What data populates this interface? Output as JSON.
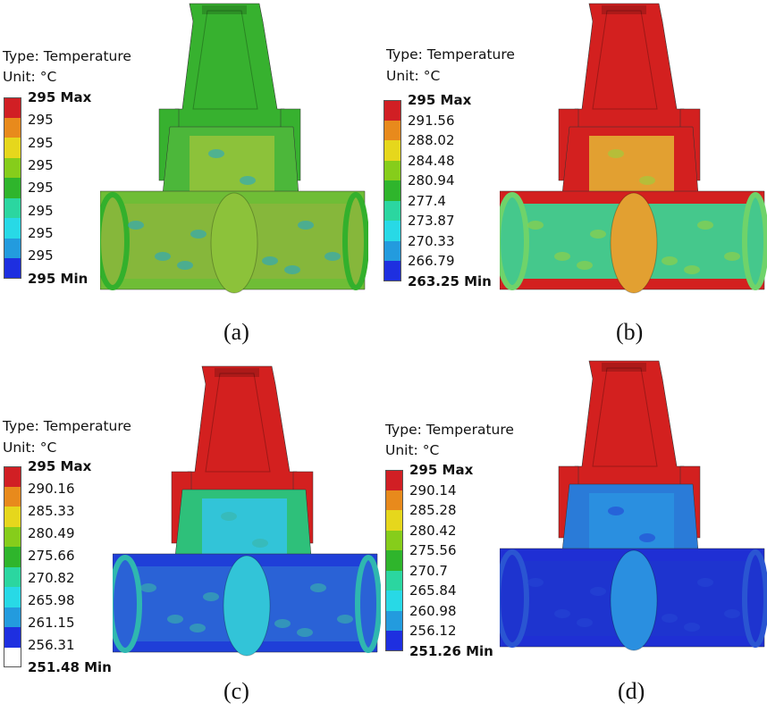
{
  "palette": [
    "#d11f24",
    "#e88a1c",
    "#e6d71c",
    "#86cd1b",
    "#2fb52c",
    "#2bd6a0",
    "#28d9e6",
    "#239bde",
    "#1e2fe0",
    "#ffffff"
  ],
  "panels": [
    {
      "id": "a",
      "type_label": "Type: Temperature",
      "unit_label": "Unit: °C",
      "legend": [
        "295 Max",
        "295",
        "295",
        "295",
        "295",
        "295",
        "295",
        "295",
        "295 Min"
      ],
      "swatches": [
        "#d11f24",
        "#e88a1c",
        "#e6d71c",
        "#86cd1b",
        "#2fb52c",
        "#2bd6a0",
        "#28d9e6",
        "#239bde",
        "#1e2fe0"
      ],
      "caption": "(a)",
      "scheme": {
        "neck": "#37b12f",
        "body": "#4cb73a",
        "inner": "#8cc23a",
        "pipe": "#6fbd36",
        "bore": "#86b73b",
        "rim": "#33b02c",
        "speck": "#27a6c8"
      }
    },
    {
      "id": "b",
      "type_label": "Type: Temperature",
      "unit_label": "Unit: °C",
      "legend": [
        "295  Max",
        "291.56",
        "288.02",
        "284.48",
        "280.94",
        "277.4",
        "273.87",
        "270.33",
        "266.79",
        "263.25 Min"
      ],
      "swatches": [
        "#d11f24",
        "#e88a1c",
        "#e6d71c",
        "#86cd1b",
        "#2fb52c",
        "#2bd6a0",
        "#28d9e6",
        "#239bde",
        "#1e2fe0"
      ],
      "caption": "(b)",
      "scheme": {
        "neck": "#d3201f",
        "body": "#d3201f",
        "inner": "#e2a031",
        "pipe": "#d3201f",
        "bore": "#45c88c",
        "rim": "#6fd36a",
        "speck": "#9ad040"
      }
    },
    {
      "id": "c",
      "type_label": "Type: Temperature",
      "unit_label": "Unit: °C",
      "legend": [
        "295 Max",
        "290.16",
        "285.33",
        "280.49",
        "275.66",
        "270.82",
        "265.98",
        "261.15",
        "256.31",
        "251.48 Min"
      ],
      "swatches": [
        "#d11f24",
        "#e88a1c",
        "#e6d71c",
        "#86cd1b",
        "#2fb52c",
        "#2bd6a0",
        "#28d9e6",
        "#239bde",
        "#1e2fe0",
        "#ffffff"
      ],
      "caption": "(c)",
      "scheme": {
        "neck": "#d3201f",
        "body": "#2ec07a",
        "inner": "#32c4d8",
        "pipe": "#1f3fd8",
        "bore": "#2a62d6",
        "rim": "#2fb7b0",
        "speck": "#3ab6a8"
      }
    },
    {
      "id": "d",
      "type_label": "Type: Temperature",
      "unit_label": "Unit: °C",
      "legend": [
        "295 Max",
        "290.14",
        "285.28",
        "280.42",
        "275.56",
        "270.7",
        "265.84",
        "260.98",
        "256.12",
        "251.26 Min"
      ],
      "swatches": [
        "#d11f24",
        "#e88a1c",
        "#e6d71c",
        "#86cd1b",
        "#2fb52c",
        "#2bd6a0",
        "#28d9e6",
        "#239bde",
        "#1e2fe0"
      ],
      "caption": "(d)",
      "scheme": {
        "neck": "#d3201f",
        "body": "#2a7bd8",
        "inner": "#2a8fe0",
        "pipe": "#1f2fd4",
        "bore": "#1e34cf",
        "rim": "#2a55d2",
        "speck": "#2446d4"
      }
    }
  ]
}
